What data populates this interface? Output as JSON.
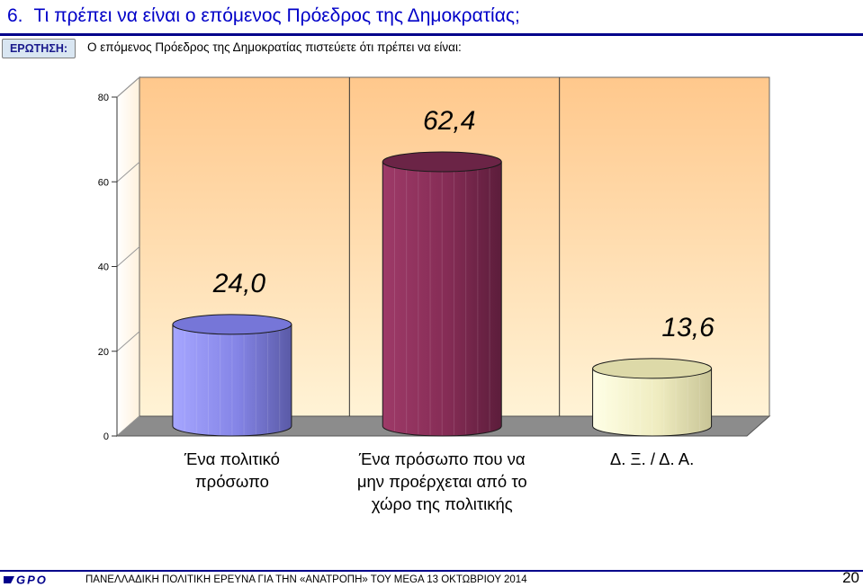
{
  "slide": {
    "number": "6.",
    "title": "Τι πρέπει να είναι ο επόμενος Πρόεδρος της Δημοκρατίας;"
  },
  "question": {
    "badge": "ΕΡΩΤΗΣΗ:",
    "text": "Ο επόμενος Πρόεδρος της Δημοκρατίας πιστεύετε ότι πρέπει να είναι:"
  },
  "chart_data": {
    "type": "bar",
    "categories": [
      "Ένα πολιτικό πρόσωπο",
      "Ένα πρόσωπο που να μην προέρχεται από το χώρο της πολιτικής",
      "Δ. Ξ. / Δ. Α."
    ],
    "category_lines": [
      [
        "Ένα πολιτικό",
        "πρόσωπο"
      ],
      [
        "Ένα πρόσωπο που να",
        "μην προέρχεται από το",
        "χώρο της πολιτικής"
      ],
      [
        "Δ. Ξ. / Δ. Α."
      ]
    ],
    "values": [
      24.0,
      62.4,
      13.6
    ],
    "value_labels": [
      "24,0",
      "62,4",
      "13,6"
    ],
    "yticks": [
      "0",
      "20",
      "40",
      "60",
      "80"
    ],
    "ylim": [
      0,
      80
    ],
    "grid": true,
    "colors": [
      "#8f8fee",
      "#8c2f5a",
      "#f2efc4"
    ]
  },
  "footer": {
    "logo": "GPO",
    "text": "ΠΑΝΕΛΛΑΔΙΚΗ ΠΟΛΙΤΙΚΗ ΕΡΕΥΝΑ ΓΙΑ ΤΗΝ «ΑΝΑΤΡΟΠΗ» ΤΟΥ MEGA  13  ΟΚΤΩΒΡΙΟΥ  2014",
    "page": "20"
  }
}
